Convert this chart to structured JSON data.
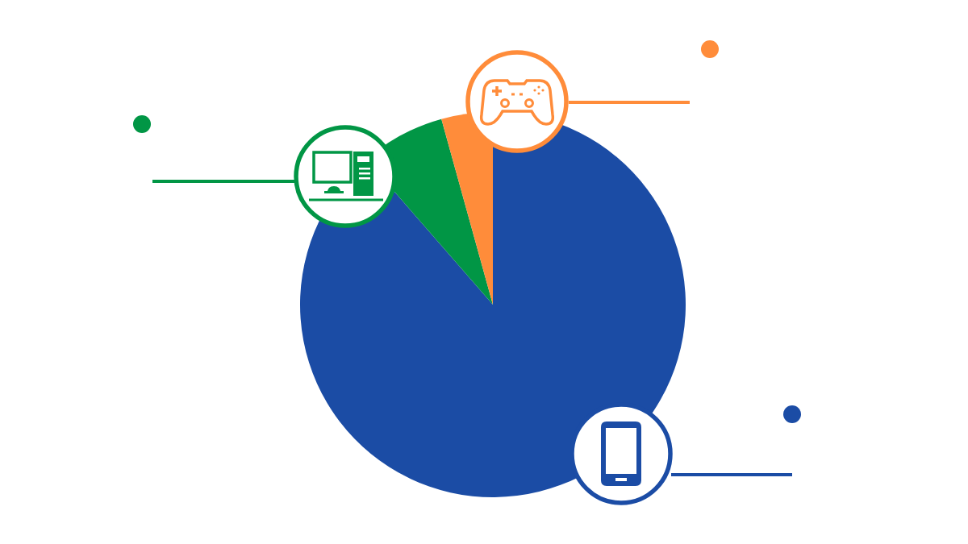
{
  "chart_data": {
    "type": "pie",
    "categories": [
      null,
      null,
      null
    ],
    "values": [
      88.6,
      7.1,
      4.3
    ],
    "colors": [
      "#1b4ca5",
      "#019645",
      "#ff8c3a"
    ]
  }
}
